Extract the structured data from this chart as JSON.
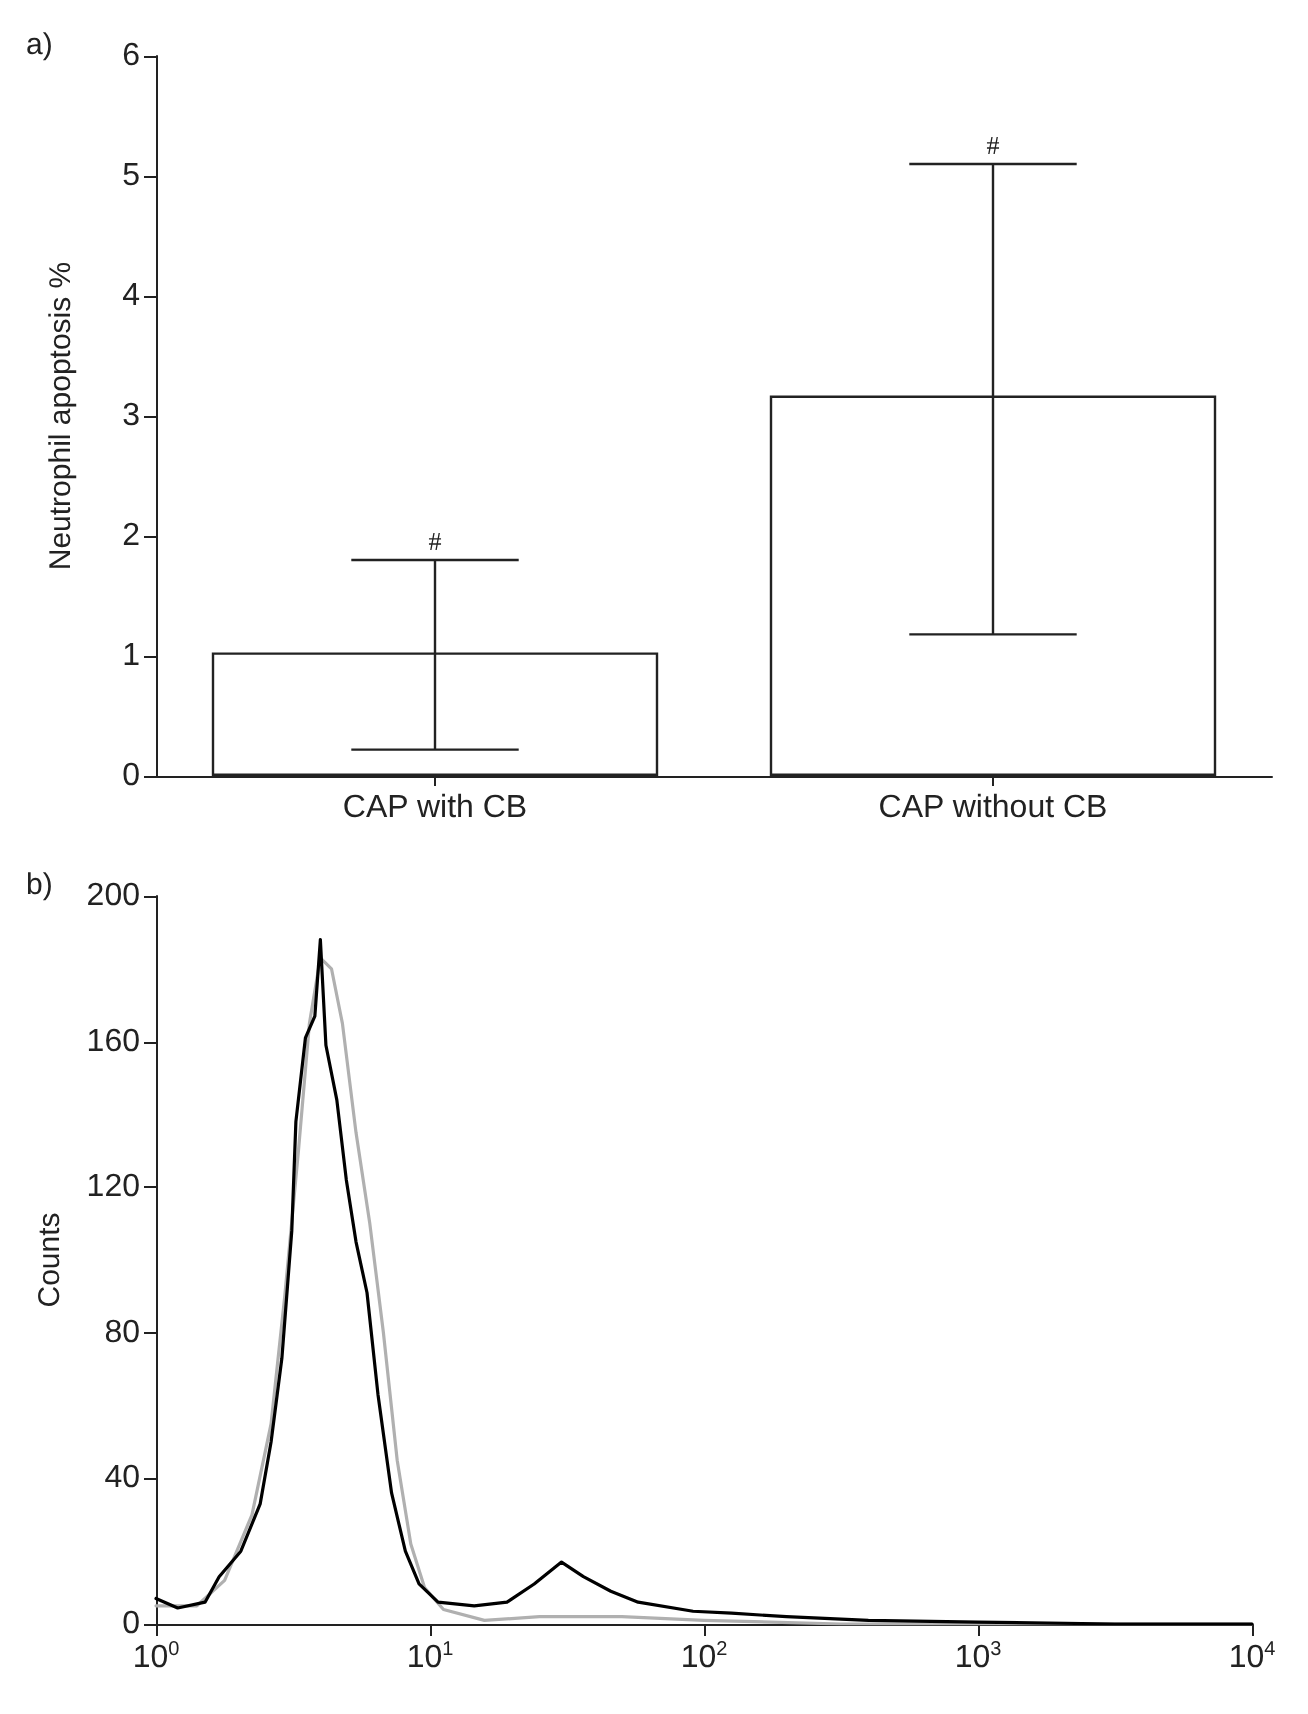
{
  "chart_data": [
    {
      "type": "bar",
      "title": "a)",
      "ylabel": "Neutrophil apoptosis %",
      "categories": [
        "CAP with CB",
        "CAP without CB"
      ],
      "values": [
        1.03,
        3.17
      ],
      "color": "#ffffff",
      "errors": [
        [
          0.22,
          1.8
        ],
        [
          1.18,
          5.1
        ]
      ],
      "ylim": [
        0,
        6
      ],
      "yticks": [
        0,
        1,
        2,
        3,
        4,
        5,
        6
      ],
      "grid": false,
      "annotations": [
        {
          "text": "#",
          "x": "CAP with CB",
          "y": 1.8
        },
        {
          "text": "#",
          "x": "CAP without CB",
          "y": 5.1
        }
      ]
    },
    {
      "type": "line",
      "title": "b)",
      "ylabel": "Counts",
      "log": "x",
      "xlim": [
        1,
        10000
      ],
      "xticks": [
        {
          "value": 1,
          "label": "10$^{0}$"
        },
        {
          "value": 10,
          "label": "10$^{1}$"
        },
        {
          "value": 100,
          "label": "10$^{2}$"
        },
        {
          "value": 1000,
          "label": "10$^{3}$"
        },
        {
          "value": 10000,
          "label": "10$^{4}$"
        }
      ],
      "ylim": [
        0,
        200
      ],
      "yticks": [
        0,
        40,
        80,
        120,
        160,
        200
      ],
      "grid": false,
      "marker": "none",
      "line_style": "solid",
      "series": [
        {
          "color": "#000000",
          "x": [
            1,
            1.2,
            1.51,
            1.7,
            2.04,
            2.4,
            2.63,
            2.88,
            3.13,
            3.24,
            3.51,
            3.8,
            3.98,
            4.17,
            4.57,
            4.95,
            5.37,
            5.89,
            6.46,
            7.24,
            8.13,
            9.12,
            10.7,
            14.5,
            19.1,
            24,
            30.2,
            36.3,
            45.7,
            57.5,
            91.2,
            126,
            200,
            398,
            1000,
            3162,
            10000
          ],
          "values": [
            7,
            4.4,
            6,
            13,
            20,
            33,
            50,
            73,
            108,
            138,
            161,
            167,
            188,
            159,
            144,
            122,
            105,
            91,
            63,
            36,
            20,
            11,
            6,
            5,
            6,
            11,
            17,
            13,
            9,
            6,
            3.5,
            3,
            2,
            1,
            0.5,
            0,
            0
          ]
        },
        {
          "color": "#b0b0b0",
          "x": [
            1,
            1.41,
            1.78,
            2.24,
            2.63,
            2.95,
            3.31,
            3.63,
            3.98,
            4.37,
            4.79,
            5.37,
            6.03,
            6.76,
            7.59,
            8.51,
            9.55,
            11.2,
            15.8,
            25.1,
            50.1,
            100,
            316,
            1000,
            10000
          ],
          "values": [
            5,
            5,
            12,
            30,
            55,
            90,
            130,
            165,
            183,
            180,
            165,
            135,
            110,
            80,
            45,
            22,
            10,
            4,
            1,
            2,
            2,
            1,
            0,
            0,
            0
          ]
        }
      ]
    }
  ]
}
